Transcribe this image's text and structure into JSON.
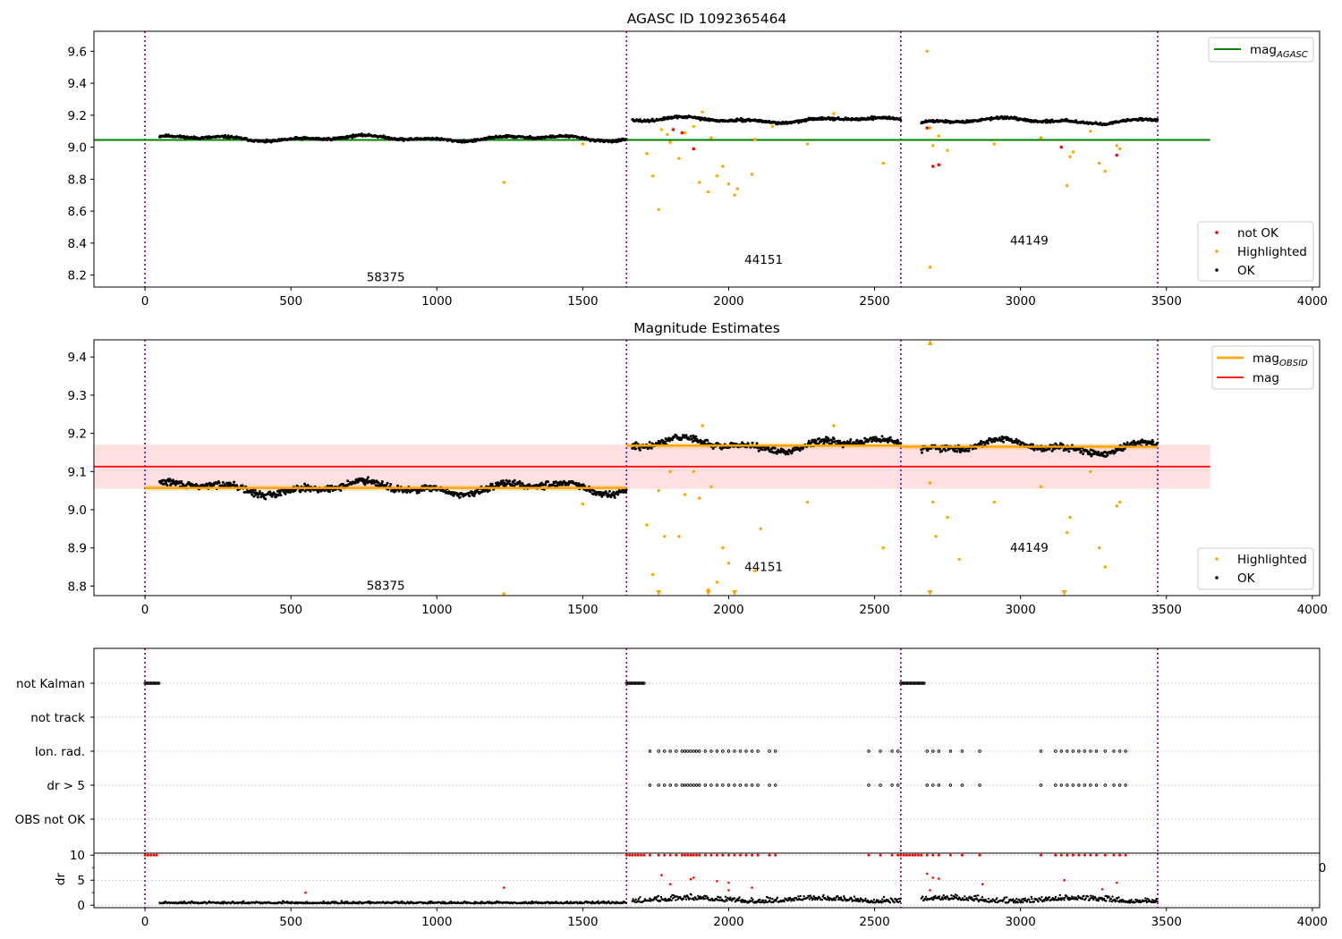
{
  "chart_data": [
    {
      "type": "scatter",
      "title": "AGASC ID 1092365464",
      "xlim": [
        -175,
        4025
      ],
      "ylim": [
        8.125,
        9.725
      ],
      "xticks": [
        0,
        500,
        1000,
        1500,
        2000,
        2500,
        3000,
        3500,
        4000
      ],
      "yticks": [
        8.2,
        8.4,
        8.6,
        8.8,
        9.0,
        9.2,
        9.4,
        9.6
      ],
      "ytick_labels": [
        "8.2",
        "8.4",
        "8.6",
        "8.8",
        "9.0",
        "9.2",
        "9.4",
        "9.6"
      ],
      "obs_boundaries": [
        0,
        1650,
        2590,
        3470
      ],
      "obs_labels": [
        {
          "text": "58375",
          "x": 825,
          "y": 8.16
        },
        {
          "text": "44151",
          "x": 2120,
          "y": 8.27
        },
        {
          "text": "44149",
          "x": 3030,
          "y": 8.39
        }
      ],
      "hlines": [
        {
          "name": "mag_AGASC",
          "y": 9.045,
          "x0": -175,
          "x1": 3650,
          "color": "#008000"
        }
      ],
      "series": [
        {
          "name": "not OK",
          "color": "#ff0000"
        },
        {
          "name": "Highlighted",
          "color": "#ffa500"
        },
        {
          "name": "OK",
          "color": "#000000"
        }
      ],
      "segments": [
        {
          "x0": 50,
          "x1": 1650,
          "level": 9.055
        },
        {
          "x0": 1670,
          "x1": 2590,
          "level": 9.17
        },
        {
          "x0": 2660,
          "x1": 3470,
          "level": 9.165
        }
      ],
      "highlighted_points": [
        [
          1230,
          8.78
        ],
        [
          1500,
          9.02
        ],
        [
          1720,
          8.96
        ],
        [
          1740,
          8.82
        ],
        [
          1760,
          8.61
        ],
        [
          1770,
          9.11
        ],
        [
          1790,
          9.08
        ],
        [
          1800,
          9.03
        ],
        [
          1830,
          8.93
        ],
        [
          1850,
          9.09
        ],
        [
          1880,
          9.13
        ],
        [
          1900,
          8.78
        ],
        [
          1910,
          9.22
        ],
        [
          1930,
          8.72
        ],
        [
          1940,
          9.06
        ],
        [
          1960,
          8.82
        ],
        [
          1980,
          8.88
        ],
        [
          2000,
          8.77
        ],
        [
          2020,
          8.7
        ],
        [
          2030,
          8.74
        ],
        [
          2080,
          8.83
        ],
        [
          2090,
          9.05
        ],
        [
          2150,
          9.13
        ],
        [
          2270,
          9.02
        ],
        [
          2360,
          9.21
        ],
        [
          2530,
          8.9
        ],
        [
          2680,
          9.6
        ],
        [
          2690,
          9.12
        ],
        [
          2700,
          9.01
        ],
        [
          2720,
          9.07
        ],
        [
          2750,
          8.98
        ],
        [
          2690,
          8.25
        ],
        [
          2910,
          9.02
        ],
        [
          3070,
          9.06
        ],
        [
          3160,
          8.76
        ],
        [
          3170,
          8.94
        ],
        [
          3180,
          8.97
        ],
        [
          3240,
          9.1
        ],
        [
          3270,
          8.9
        ],
        [
          3290,
          8.85
        ],
        [
          3330,
          9.01
        ],
        [
          3340,
          8.99
        ]
      ],
      "notok_points": [
        [
          1810,
          9.11
        ],
        [
          1840,
          9.09
        ],
        [
          1880,
          8.99
        ],
        [
          2680,
          9.12
        ],
        [
          2700,
          8.88
        ],
        [
          2720,
          8.89
        ],
        [
          3140,
          9.0
        ],
        [
          3330,
          8.95
        ]
      ]
    },
    {
      "type": "scatter",
      "title": "Magnitude Estimates",
      "xlim": [
        -175,
        4025
      ],
      "ylim": [
        8.775,
        9.445
      ],
      "xticks": [
        0,
        500,
        1000,
        1500,
        2000,
        2500,
        3000,
        3500,
        4000
      ],
      "yticks": [
        8.8,
        8.9,
        9.0,
        9.1,
        9.2,
        9.3,
        9.4
      ],
      "ytick_labels": [
        "8.8",
        "8.9",
        "9.0",
        "9.1",
        "9.2",
        "9.3",
        "9.4"
      ],
      "obs_boundaries": [
        0,
        1650,
        2590,
        3470
      ],
      "obs_labels": [
        {
          "text": "58375",
          "x": 825,
          "y": 8.79
        },
        {
          "text": "44151",
          "x": 2120,
          "y": 8.84
        },
        {
          "text": "44149",
          "x": 3030,
          "y": 8.89
        }
      ],
      "mag": {
        "name": "mag",
        "y": 9.113,
        "band": [
          9.055,
          9.17
        ],
        "x0": -175,
        "x1": 3650,
        "color": "#ff0000"
      },
      "mag_obsid": [
        {
          "x0": 0,
          "x1": 1650,
          "y": 9.057
        },
        {
          "x0": 1650,
          "x1": 2590,
          "y": 9.168
        },
        {
          "x0": 2590,
          "x1": 3470,
          "y": 9.165
        }
      ],
      "series": [
        {
          "name": "mag_OBSID",
          "color": "#ffa500"
        },
        {
          "name": "mag",
          "color": "#ff0000"
        },
        {
          "name": "Highlighted",
          "color": "#ffa500"
        },
        {
          "name": "OK",
          "color": "#000000"
        }
      ],
      "segments": [
        {
          "x0": 50,
          "x1": 1650,
          "level": 9.057
        },
        {
          "x0": 1670,
          "x1": 2590,
          "level": 9.17
        },
        {
          "x0": 2660,
          "x1": 3470,
          "level": 9.165
        }
      ],
      "highlighted_points": [
        [
          1230,
          8.78
        ],
        [
          1500,
          9.015
        ],
        [
          1720,
          8.96
        ],
        [
          1740,
          8.83
        ],
        [
          1760,
          9.05
        ],
        [
          1780,
          8.93
        ],
        [
          1800,
          9.1
        ],
        [
          1830,
          8.93
        ],
        [
          1850,
          9.04
        ],
        [
          1880,
          9.1
        ],
        [
          1900,
          9.03
        ],
        [
          1910,
          9.22
        ],
        [
          1930,
          8.79
        ],
        [
          1940,
          9.06
        ],
        [
          1960,
          8.81
        ],
        [
          1980,
          8.9
        ],
        [
          2000,
          8.86
        ],
        [
          2090,
          8.84
        ],
        [
          2110,
          8.95
        ],
        [
          2270,
          9.02
        ],
        [
          2360,
          9.22
        ],
        [
          2530,
          8.9
        ],
        [
          2690,
          9.07
        ],
        [
          2700,
          9.02
        ],
        [
          2710,
          8.93
        ],
        [
          2750,
          8.98
        ],
        [
          2790,
          8.87
        ],
        [
          2910,
          9.02
        ],
        [
          3070,
          9.06
        ],
        [
          3160,
          8.94
        ],
        [
          3170,
          8.98
        ],
        [
          3240,
          9.1
        ],
        [
          3270,
          8.9
        ],
        [
          3290,
          8.85
        ],
        [
          3330,
          9.01
        ],
        [
          3340,
          9.02
        ]
      ],
      "offscale_markers": [
        1760,
        1930,
        2020,
        2690,
        3150,
        2690
      ]
    },
    {
      "type": "scatter",
      "xlim": [
        -175,
        4025
      ],
      "xticks": [
        0,
        500,
        1000,
        1500,
        2000,
        2500,
        3000,
        3500,
        4000
      ],
      "obs_boundaries": [
        0,
        1650,
        2590,
        3470
      ],
      "flag_rows": [
        "not Kalman",
        "not track",
        "Ion. rad.",
        "dr > 5",
        "OBS not OK"
      ],
      "flag_ranges": {
        "not Kalman": [
          [
            0,
            50
          ],
          [
            1650,
            1710
          ],
          [
            2590,
            2670
          ]
        ],
        "not track": [],
        "Ion. rad.": [
          1730,
          1760,
          1780,
          1800,
          1820,
          1840,
          1850,
          1860,
          1870,
          1880,
          1890,
          1900,
          1920,
          1940,
          1960,
          1980,
          2000,
          2020,
          2040,
          2060,
          2080,
          2100,
          2140,
          2160,
          2480,
          2520,
          2560,
          2580,
          2680,
          2700,
          2720,
          2760,
          2800,
          2860,
          3070,
          3120,
          3140,
          3160,
          3180,
          3200,
          3220,
          3240,
          3260,
          3290,
          3320,
          3340,
          3360
        ],
        "dr > 5": [
          1730,
          1760,
          1780,
          1800,
          1820,
          1840,
          1850,
          1860,
          1870,
          1880,
          1890,
          1900,
          1920,
          1940,
          1960,
          1980,
          2000,
          2020,
          2040,
          2060,
          2080,
          2100,
          2140,
          2160,
          2480,
          2520,
          2560,
          2580,
          2680,
          2700,
          2720,
          2760,
          2800,
          2860,
          3070,
          3120,
          3140,
          3160,
          3180,
          3200,
          3220,
          3240,
          3260,
          3290,
          3320,
          3340,
          3360
        ],
        "OBS not OK": []
      },
      "dr_ylabel": "dr",
      "dr_ylim": [
        -0.5,
        10.4
      ],
      "dr_yticks": [
        0,
        5,
        10
      ],
      "dr_ytick_labels": [
        "0",
        "5",
        "10"
      ],
      "dr_clip": 10,
      "dr_clipped_x": [
        0,
        10,
        20,
        30,
        40,
        1650,
        1660,
        1670,
        1680,
        1690,
        1700,
        1710,
        1730,
        1760,
        1780,
        1800,
        1820,
        1840,
        1850,
        1860,
        1870,
        1880,
        1890,
        1900,
        1920,
        1940,
        1960,
        1980,
        2000,
        2020,
        2040,
        2060,
        2080,
        2100,
        2140,
        2160,
        2480,
        2520,
        2560,
        2580,
        2590,
        2600,
        2610,
        2620,
        2630,
        2640,
        2650,
        2660,
        2680,
        2700,
        2720,
        2760,
        2800,
        2860,
        3070,
        3120,
        3140,
        3160,
        3180,
        3200,
        3220,
        3240,
        3260,
        3290,
        3320,
        3340,
        3360
      ],
      "dr_red_points": [
        [
          550,
          2.5
        ],
        [
          1230,
          3.5
        ],
        [
          1770,
          6.0
        ],
        [
          1800,
          4.2
        ],
        [
          1870,
          5.2
        ],
        [
          1880,
          5.5
        ],
        [
          1960,
          4.8
        ],
        [
          2000,
          4.5
        ],
        [
          2080,
          3.5
        ],
        [
          2680,
          6.3
        ],
        [
          2700,
          5.5
        ],
        [
          2720,
          5.3
        ],
        [
          2690,
          3.0
        ],
        [
          2870,
          4.2
        ],
        [
          3150,
          5.0
        ],
        [
          3280,
          3.2
        ],
        [
          3330,
          4.5
        ],
        [
          2000,
          3.0
        ]
      ],
      "dr_edge_label": "0"
    }
  ]
}
